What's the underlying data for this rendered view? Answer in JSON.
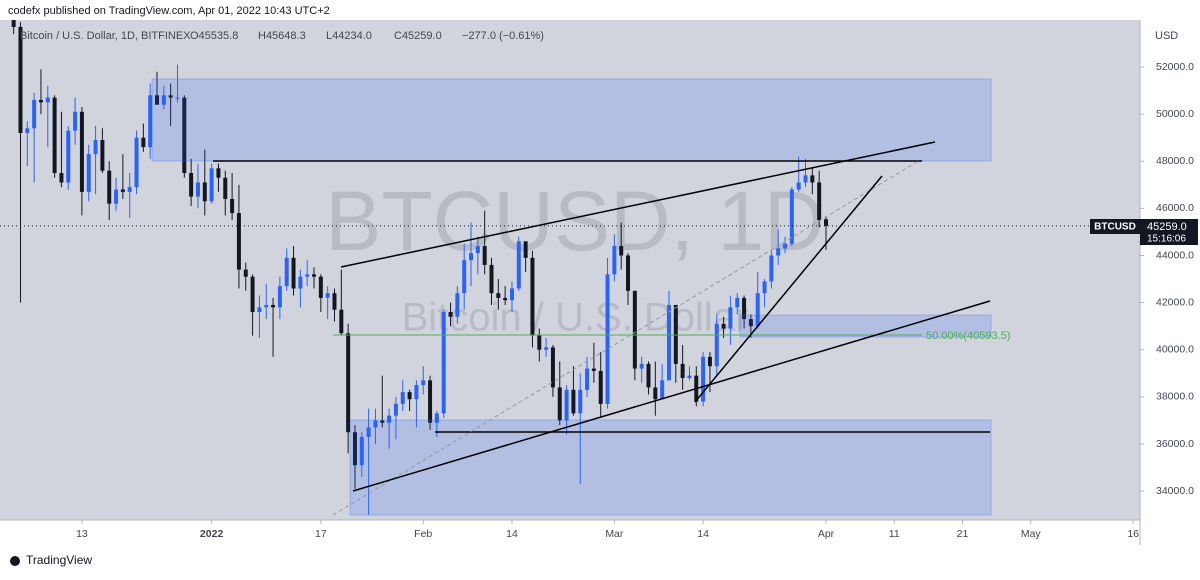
{
  "header": "codefx published on TradingView.com, Apr 01, 2022 10:43 UTC+2",
  "footer": "TradingView",
  "chart_data": {
    "type": "candlestick",
    "legend_text": "Bitcoin / U.S. Dollar, 1D, BITFINEX",
    "ohlc_labels": [
      "O45535.8",
      "H45648.3",
      "L44234.0",
      "C45259.0"
    ],
    "change_label": "−277.0 (−0.61%)",
    "watermark": "BTCUSD, 1D",
    "watermark_sub": "Bitcoin / U.S. Dollar",
    "currency": "USD",
    "last_label": {
      "symbol": "BTCUSD",
      "price": "45259.0",
      "countdown": "15:16:06"
    },
    "fib_label": "50.00%(40593.5)",
    "up_color": "#2962ff",
    "down_color": "#131722",
    "ylim": [
      32773,
      53995
    ],
    "yticks": [
      {
        "value": 34000,
        "label": "34000.0"
      },
      {
        "value": 36000,
        "label": "36000.0"
      },
      {
        "value": 38000,
        "label": "38000.0"
      },
      {
        "value": 40000,
        "label": "40000.0"
      },
      {
        "value": 42000,
        "label": "42000.0"
      },
      {
        "value": 44000,
        "label": "44000.0"
      },
      {
        "value": 46000,
        "label": "46000.0"
      },
      {
        "value": 48000,
        "label": "48000.0"
      },
      {
        "value": 50000,
        "label": "50000.0"
      },
      {
        "value": 52000,
        "label": "52000.0"
      }
    ],
    "xlim": [
      "2021-12-01",
      "2022-05-17"
    ],
    "xticks": [
      {
        "value": "2021-12-13",
        "label": "13"
      },
      {
        "value": "2022-01-01",
        "label": "2022"
      },
      {
        "value": "2022-01-17",
        "label": "17"
      },
      {
        "value": "2022-02-01",
        "label": "Feb"
      },
      {
        "value": "2022-02-14",
        "label": "14"
      },
      {
        "value": "2022-03-01",
        "label": "Mar"
      },
      {
        "value": "2022-03-14",
        "label": "14"
      },
      {
        "value": "2022-04-01",
        "label": "Apr"
      },
      {
        "value": "2022-04-11",
        "label": "11"
      },
      {
        "value": "2022-04-21",
        "label": "21"
      },
      {
        "value": "2022-05-01",
        "label": "May"
      },
      {
        "value": "2022-05-16",
        "label": "16"
      }
    ],
    "x": [
      "2021-12-03",
      "2021-12-04",
      "2021-12-05",
      "2021-12-06",
      "2021-12-07",
      "2021-12-08",
      "2021-12-09",
      "2021-12-10",
      "2021-12-11",
      "2021-12-12",
      "2021-12-13",
      "2021-12-14",
      "2021-12-15",
      "2021-12-16",
      "2021-12-17",
      "2021-12-18",
      "2021-12-19",
      "2021-12-20",
      "2021-12-21",
      "2021-12-22",
      "2021-12-23",
      "2021-12-24",
      "2021-12-25",
      "2021-12-26",
      "2021-12-27",
      "2021-12-28",
      "2021-12-29",
      "2021-12-30",
      "2021-12-31",
      "2022-01-01",
      "2022-01-02",
      "2022-01-03",
      "2022-01-04",
      "2022-01-05",
      "2022-01-06",
      "2022-01-07",
      "2022-01-08",
      "2022-01-09",
      "2022-01-10",
      "2022-01-11",
      "2022-01-12",
      "2022-01-13",
      "2022-01-14",
      "2022-01-15",
      "2022-01-16",
      "2022-01-17",
      "2022-01-18",
      "2022-01-19",
      "2022-01-20",
      "2022-01-21",
      "2022-01-22",
      "2022-01-23",
      "2022-01-24",
      "2022-01-25",
      "2022-01-26",
      "2022-01-27",
      "2022-01-28",
      "2022-01-29",
      "2022-01-30",
      "2022-01-31",
      "2022-02-01",
      "2022-02-02",
      "2022-02-03",
      "2022-02-04",
      "2022-02-05",
      "2022-02-06",
      "2022-02-07",
      "2022-02-08",
      "2022-02-09",
      "2022-02-10",
      "2022-02-11",
      "2022-02-12",
      "2022-02-13",
      "2022-02-14",
      "2022-02-15",
      "2022-02-16",
      "2022-02-17",
      "2022-02-18",
      "2022-02-19",
      "2022-02-20",
      "2022-02-21",
      "2022-02-22",
      "2022-02-23",
      "2022-02-24",
      "2022-02-25",
      "2022-02-26",
      "2022-02-27",
      "2022-02-28",
      "2022-03-01",
      "2022-03-02",
      "2022-03-03",
      "2022-03-04",
      "2022-03-05",
      "2022-03-06",
      "2022-03-07",
      "2022-03-08",
      "2022-03-09",
      "2022-03-10",
      "2022-03-11",
      "2022-03-12",
      "2022-03-13",
      "2022-03-14",
      "2022-03-15",
      "2022-03-16",
      "2022-03-17",
      "2022-03-18",
      "2022-03-19",
      "2022-03-20",
      "2022-03-21",
      "2022-03-22",
      "2022-03-23",
      "2022-03-24",
      "2022-03-25",
      "2022-03-26",
      "2022-03-27",
      "2022-03-28",
      "2022-03-29",
      "2022-03-30",
      "2022-03-31",
      "2022-04-01"
    ],
    "ohlc": [
      [
        54500,
        54800,
        53400,
        53700
      ],
      [
        53700,
        53900,
        42000,
        49200
      ],
      [
        49200,
        49700,
        47800,
        49400
      ],
      [
        49400,
        50900,
        47100,
        50600
      ],
      [
        50600,
        51900,
        50000,
        50500
      ],
      [
        50500,
        51200,
        48600,
        50700
      ],
      [
        50700,
        50800,
        47300,
        47500
      ],
      [
        47500,
        50100,
        46900,
        47100
      ],
      [
        47100,
        49500,
        46800,
        49300
      ],
      [
        49300,
        50700,
        48700,
        50100
      ],
      [
        50100,
        50300,
        45700,
        46700
      ],
      [
        46700,
        48700,
        46300,
        48300
      ],
      [
        48300,
        49500,
        46600,
        48900
      ],
      [
        48900,
        49400,
        47500,
        47600
      ],
      [
        47600,
        48000,
        45500,
        46200
      ],
      [
        46200,
        47300,
        45900,
        46800
      ],
      [
        46800,
        48300,
        46400,
        46700
      ],
      [
        46700,
        47500,
        45600,
        46900
      ],
      [
        46900,
        49300,
        46600,
        49000
      ],
      [
        49000,
        49600,
        48400,
        48600
      ],
      [
        48600,
        51300,
        48100,
        50800
      ],
      [
        50800,
        51800,
        50400,
        50400
      ],
      [
        50400,
        51200,
        50200,
        50800
      ],
      [
        50800,
        51300,
        49500,
        50700
      ],
      [
        50700,
        52100,
        50500,
        50700
      ],
      [
        50700,
        50800,
        47300,
        47500
      ],
      [
        47500,
        48100,
        46100,
        46500
      ],
      [
        46500,
        47900,
        46000,
        47100
      ],
      [
        47100,
        48500,
        45700,
        46300
      ],
      [
        46300,
        47900,
        46200,
        47700
      ],
      [
        47700,
        47900,
        46700,
        47300
      ],
      [
        47300,
        47600,
        45700,
        46400
      ],
      [
        46400,
        47500,
        45500,
        45800
      ],
      [
        45800,
        47000,
        42600,
        43400
      ],
      [
        43400,
        43700,
        42500,
        43100
      ],
      [
        43100,
        43200,
        40600,
        41600
      ],
      [
        41600,
        42300,
        40500,
        41800
      ],
      [
        41800,
        42800,
        41300,
        41900
      ],
      [
        41900,
        42200,
        39700,
        41800
      ],
      [
        41800,
        43100,
        41300,
        42700
      ],
      [
        42700,
        44300,
        42500,
        43900
      ],
      [
        43900,
        44400,
        42300,
        42600
      ],
      [
        42600,
        43400,
        41800,
        43100
      ],
      [
        43100,
        43800,
        42700,
        43200
      ],
      [
        43200,
        43500,
        42600,
        43100
      ],
      [
        43100,
        43200,
        41600,
        42200
      ],
      [
        42200,
        42700,
        41300,
        42400
      ],
      [
        42400,
        42600,
        41200,
        41700
      ],
      [
        41700,
        43400,
        40600,
        40700
      ],
      [
        40700,
        41100,
        35600,
        36500
      ],
      [
        36500,
        36800,
        34100,
        35100
      ],
      [
        35100,
        36500,
        34600,
        36300
      ],
      [
        36300,
        37500,
        33000,
        36700
      ],
      [
        36700,
        37500,
        36000,
        37000
      ],
      [
        37000,
        38900,
        36700,
        36900
      ],
      [
        36900,
        37500,
        35800,
        37200
      ],
      [
        37200,
        38000,
        36200,
        37700
      ],
      [
        37700,
        38700,
        37400,
        38200
      ],
      [
        38200,
        38300,
        37400,
        37900
      ],
      [
        37900,
        38700,
        36700,
        38500
      ],
      [
        38500,
        39300,
        38100,
        38700
      ],
      [
        38700,
        38900,
        36600,
        36900
      ],
      [
        36900,
        37400,
        36300,
        37300
      ],
      [
        37300,
        41700,
        37100,
        41600
      ],
      [
        41600,
        42000,
        41000,
        41400
      ],
      [
        41400,
        42700,
        41100,
        42400
      ],
      [
        42400,
        44500,
        41700,
        43800
      ],
      [
        43800,
        45400,
        42700,
        44100
      ],
      [
        44100,
        44800,
        43200,
        44400
      ],
      [
        44400,
        45900,
        43200,
        43600
      ],
      [
        43600,
        43900,
        41900,
        42400
      ],
      [
        42400,
        43000,
        41700,
        42200
      ],
      [
        42200,
        42700,
        41900,
        42100
      ],
      [
        42100,
        42900,
        41600,
        42600
      ],
      [
        42600,
        44800,
        42500,
        44600
      ],
      [
        44600,
        44600,
        43300,
        43900
      ],
      [
        43900,
        44200,
        40100,
        40600
      ],
      [
        40600,
        40900,
        39500,
        40000
      ],
      [
        40000,
        40500,
        39700,
        40100
      ],
      [
        40100,
        40200,
        38000,
        38400
      ],
      [
        38400,
        39500,
        36800,
        37000
      ],
      [
        37000,
        38500,
        36400,
        38300
      ],
      [
        38300,
        39300,
        37200,
        37300
      ],
      [
        37300,
        39000,
        34300,
        38300
      ],
      [
        38300,
        39700,
        38000,
        39200
      ],
      [
        39200,
        40300,
        38600,
        39100
      ],
      [
        39100,
        39900,
        37100,
        37700
      ],
      [
        37700,
        43900,
        37500,
        43200
      ],
      [
        43200,
        44900,
        42900,
        44400
      ],
      [
        44400,
        45400,
        43400,
        44000
      ],
      [
        44000,
        44100,
        41900,
        42500
      ],
      [
        42500,
        42500,
        38700,
        39200
      ],
      [
        39200,
        39700,
        38600,
        39400
      ],
      [
        39400,
        39500,
        38100,
        38400
      ],
      [
        38400,
        39500,
        37200,
        37900
      ],
      [
        37900,
        39400,
        37900,
        38700
      ],
      [
        38700,
        42500,
        38700,
        41900
      ],
      [
        41900,
        41900,
        38600,
        39400
      ],
      [
        39400,
        40200,
        38300,
        38800
      ],
      [
        38800,
        39300,
        38700,
        38900
      ],
      [
        38900,
        39300,
        37600,
        37800
      ],
      [
        37800,
        39900,
        37600,
        39700
      ],
      [
        39700,
        39900,
        38200,
        39300
      ],
      [
        39300,
        41500,
        38900,
        41100
      ],
      [
        41100,
        41400,
        40500,
        40900
      ],
      [
        40900,
        42300,
        40200,
        41800
      ],
      [
        41800,
        42400,
        41500,
        42200
      ],
      [
        42200,
        42300,
        40900,
        41300
      ],
      [
        41300,
        41500,
        40500,
        41000
      ],
      [
        41000,
        43300,
        40900,
        42400
      ],
      [
        42400,
        43000,
        41800,
        42900
      ],
      [
        42900,
        44200,
        42600,
        44000
      ],
      [
        44000,
        45100,
        43600,
        44300
      ],
      [
        44300,
        44800,
        44100,
        44500
      ],
      [
        44500,
        46900,
        44400,
        46800
      ],
      [
        46800,
        48200,
        46700,
        47100
      ],
      [
        47100,
        48100,
        46900,
        47400
      ],
      [
        47400,
        47700,
        46600,
        47100
      ],
      [
        47100,
        47600,
        45200,
        45500
      ],
      [
        45535.8,
        45648.3,
        44234.0,
        45259.0
      ]
    ]
  }
}
